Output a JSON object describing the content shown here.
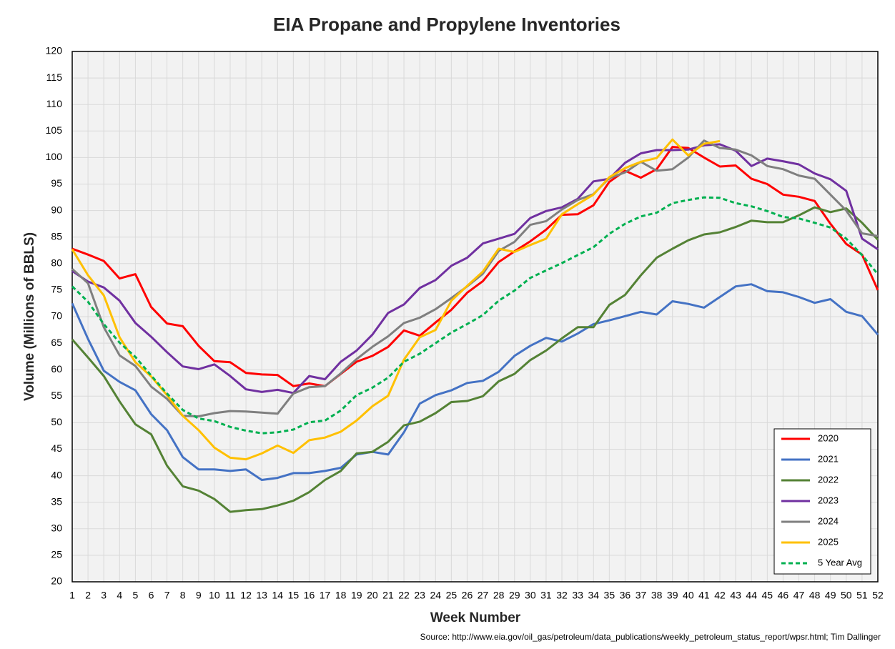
{
  "chart_data": {
    "type": "line",
    "title": "EIA Propane and Propylene Inventories",
    "x_label": "Week Number",
    "y_label": "Volume (Millions of BBLS)",
    "source": "Source: http://www.eia.gov/oil_gas/petroleum/data_publications/weekly_petroleum_status_report/wpsr.html; Tim Dallinger",
    "x": [
      1,
      2,
      3,
      4,
      5,
      6,
      7,
      8,
      9,
      10,
      11,
      12,
      13,
      14,
      15,
      16,
      17,
      18,
      19,
      20,
      21,
      22,
      23,
      24,
      25,
      26,
      27,
      28,
      29,
      30,
      31,
      32,
      33,
      34,
      35,
      36,
      37,
      38,
      39,
      40,
      41,
      42,
      43,
      44,
      45,
      46,
      47,
      48,
      49,
      50,
      51,
      52
    ],
    "xlim": [
      1,
      52
    ],
    "xticks": [
      1,
      2,
      3,
      4,
      5,
      6,
      7,
      8,
      9,
      10,
      11,
      12,
      13,
      14,
      15,
      16,
      17,
      18,
      19,
      20,
      21,
      22,
      23,
      24,
      25,
      26,
      27,
      28,
      29,
      30,
      31,
      32,
      33,
      34,
      35,
      36,
      37,
      38,
      39,
      40,
      41,
      42,
      43,
      44,
      45,
      46,
      47,
      48,
      49,
      50,
      51,
      52
    ],
    "ylim": [
      20,
      120
    ],
    "yticks": [
      20,
      25,
      30,
      35,
      40,
      45,
      50,
      55,
      60,
      65,
      70,
      75,
      80,
      85,
      90,
      95,
      100,
      105,
      110,
      115,
      120
    ],
    "grid": true,
    "legend": "lower right",
    "series": [
      {
        "name": "2020",
        "color": "#ff0000",
        "values": [
          82.8,
          81.7,
          80.5,
          77.2,
          78,
          71.8,
          68.7,
          68.2,
          64.5,
          61.6,
          61.4,
          59.4,
          59.1,
          59.0,
          56.9,
          57.4,
          56.9,
          59.2,
          61.5,
          62.6,
          64.3,
          67.4,
          66.4,
          68.9,
          71.3,
          74.5,
          76.7,
          80.3,
          82.3,
          84.2,
          86.4,
          89.2,
          89.3,
          91.0,
          95.4,
          97.5,
          96.2,
          97.8,
          102.0,
          101.8,
          100.0,
          98.3,
          98.5,
          96.0,
          95.0,
          93.0,
          92.6,
          91.8,
          87.5,
          83.7,
          81.7,
          75.0
        ]
      },
      {
        "name": "2021",
        "color": "#4472c4",
        "values": [
          72.5,
          65.8,
          59.8,
          57.7,
          56.1,
          51.6,
          48.6,
          43.5,
          41.2,
          41.2,
          40.9,
          41.2,
          39.2,
          39.6,
          40.5,
          40.5,
          40.9,
          41.5,
          44.0,
          44.5,
          44.0,
          48.2,
          53.6,
          55.2,
          56.1,
          57.5,
          57.9,
          59.6,
          62.6,
          64.5,
          66.0,
          65.3,
          66.8,
          68.6,
          69.3,
          70.1,
          70.9,
          70.4,
          72.9,
          72.4,
          71.7,
          73.7,
          75.7,
          76.1,
          74.8,
          74.6,
          73.7,
          72.6,
          73.3,
          70.9,
          70.1,
          66.6
        ]
      },
      {
        "name": "2022",
        "color": "#548235",
        "values": [
          65.7,
          62.3,
          58.8,
          54.0,
          49.7,
          47.8,
          41.9,
          38.0,
          37.2,
          35.6,
          33.2,
          33.5,
          33.7,
          34.4,
          35.3,
          36.9,
          39.2,
          40.9,
          44.2,
          44.5,
          46.4,
          49.5,
          50.2,
          51.8,
          53.9,
          54.1,
          55.0,
          57.8,
          59.2,
          61.8,
          63.6,
          65.9,
          68.0,
          68.0,
          72.2,
          74.1,
          77.8,
          81.1,
          82.8,
          84.4,
          85.5,
          85.9,
          86.9,
          88.1,
          87.8,
          87.8,
          89.1,
          90.6,
          89.7,
          90.4,
          87.7,
          84.5
        ]
      },
      {
        "name": "2023",
        "color": "#7030a0",
        "values": [
          78.6,
          76.6,
          75.5,
          73.0,
          68.8,
          66.2,
          63.3,
          60.6,
          60.1,
          61.0,
          58.8,
          56.3,
          55.8,
          56.2,
          55.6,
          58.8,
          58.2,
          61.5,
          63.6,
          66.6,
          70.7,
          72.3,
          75.4,
          76.9,
          79.6,
          81.1,
          83.8,
          84.7,
          85.6,
          88.6,
          89.9,
          90.6,
          92.2,
          95.5,
          96.0,
          99.0,
          100.8,
          101.4,
          101.4,
          101.5,
          102.3,
          102.5,
          101.3,
          98.4,
          99.8,
          99.3,
          98.7,
          97.0,
          95.9,
          93.7,
          84.7,
          82.7
        ]
      },
      {
        "name": "2024",
        "color": "#7f7f7f",
        "values": [
          79.0,
          76.3,
          68.0,
          62.7,
          60.7,
          56.8,
          54.5,
          51.3,
          51.2,
          51.8,
          52.2,
          52.1,
          51.9,
          51.7,
          55.5,
          56.7,
          56.9,
          59.3,
          62.0,
          64.3,
          66.3,
          68.8,
          69.8,
          71.4,
          73.5,
          75.7,
          78.1,
          82.4,
          84.1,
          87.3,
          88.0,
          90.2,
          92.0,
          93.1,
          96.1,
          97.2,
          99.2,
          97.5,
          97.8,
          100.0,
          103.2,
          101.8,
          101.5,
          100.4,
          98.4,
          97.8,
          96.6,
          96.0,
          93.0,
          90.0,
          85.7,
          85.2
        ]
      },
      {
        "name": "2025",
        "color": "#ffc000",
        "values": [
          82.7,
          77.8,
          74.0,
          66.1,
          61.4,
          58.7,
          55.2,
          51.3,
          48.6,
          45.3,
          43.4,
          43.1,
          44.2,
          45.7,
          44.3,
          46.7,
          47.2,
          48.3,
          50.4,
          53.1,
          55.1,
          61.9,
          66.1,
          67.5,
          73.0,
          75.8,
          78.5,
          82.8,
          82.2,
          83.5,
          84.7,
          89.3,
          91.2,
          93.0,
          96.3,
          98.0,
          99.2,
          99.9,
          103.4,
          100.4,
          102.6,
          103.1,
          null,
          null,
          null,
          null,
          null,
          null,
          null,
          null,
          null,
          null
        ]
      },
      {
        "name": "5 Year Avg",
        "color": "#00b050",
        "line_style": "dashed",
        "values": [
          75.7,
          72.8,
          68.6,
          65.1,
          62.4,
          58.9,
          55.5,
          52.4,
          50.8,
          50.3,
          49.2,
          48.5,
          48.0,
          48.2,
          48.7,
          50.1,
          50.4,
          52.3,
          55.2,
          56.6,
          58.5,
          61.5,
          63.0,
          65.0,
          67.0,
          68.6,
          70.3,
          73.0,
          74.9,
          77.3,
          78.7,
          80.1,
          81.6,
          83.1,
          85.6,
          87.5,
          88.9,
          89.6,
          91.4,
          92.0,
          92.5,
          92.4,
          91.4,
          90.8,
          89.9,
          88.8,
          88.5,
          87.7,
          86.8,
          84.7,
          81.6,
          78.0
        ]
      }
    ]
  }
}
